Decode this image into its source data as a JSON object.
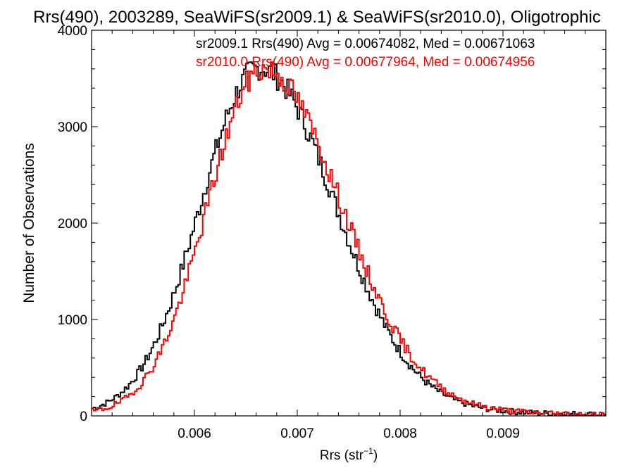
{
  "chart_data": {
    "type": "histogram-step",
    "title": "Rrs(490), 2003289, SeaWiFS(sr2009.1) & SeaWiFS(sr2010.0), Oligotrophic",
    "xlabel": "Rrs (str",
    "xlabel_sup": "−1",
    "xlabel_close": ")",
    "ylabel": "Number of Observations",
    "xlim": [
      0.005,
      0.01
    ],
    "ylim": [
      0,
      4000
    ],
    "xticks": [
      0.006,
      0.007,
      0.008,
      0.009
    ],
    "xtick_labels": [
      "0.006",
      "0.007",
      "0.008",
      "0.009"
    ],
    "yticks": [
      0,
      1000,
      2000,
      3000,
      4000
    ],
    "ytick_labels": [
      "0",
      "1000",
      "2000",
      "3000",
      "4000"
    ],
    "bin_width": 2e-05,
    "series": [
      {
        "name": "sr2009.1",
        "color": "#000000",
        "stat_label": "sr2009.1 Rrs(490) Avg = 0.00674082, Med = 0.00671063",
        "mean": 0.00674082,
        "median": 0.00671063,
        "peak": 3610,
        "sigma_left": 0.00057,
        "sigma_right": 0.00072,
        "jitter_seed": 7
      },
      {
        "name": "sr2010.0",
        "color": "#ff0000",
        "stat_label": "sr2010.0 Rrs(490) Avg = 0.00677964, Med = 0.00674956",
        "mean": 0.00677964,
        "median": 0.00674956,
        "peak": 3600,
        "sigma_left": 0.00054,
        "sigma_right": 0.00074,
        "jitter_seed": 19
      }
    ]
  }
}
